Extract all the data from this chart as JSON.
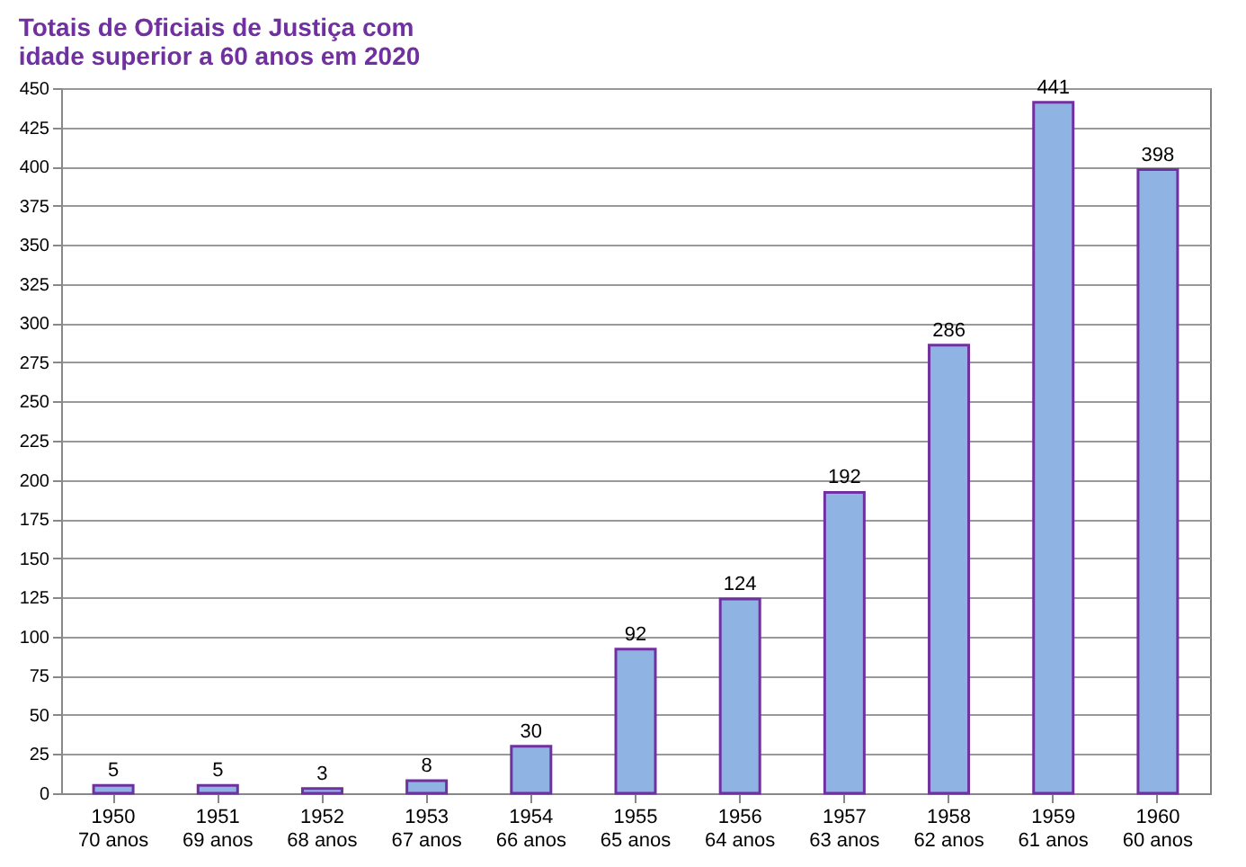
{
  "chart_data": {
    "type": "bar",
    "title": "Totais de Oficiais de Justiça com\nidade superior a 60 anos em 2020",
    "categories": [
      "1950\n70 anos",
      "1951\n69 anos",
      "1952\n68 anos",
      "1953\n67 anos",
      "1954\n66 anos",
      "1955\n65 anos",
      "1956\n64 anos",
      "1957\n63 anos",
      "1958\n62 anos",
      "1959\n61 anos",
      "1960\n60 anos"
    ],
    "values": [
      5,
      5,
      3,
      8,
      30,
      92,
      124,
      192,
      286,
      441,
      398
    ],
    "color": "#8fb3e3",
    "ylim": [
      0,
      450
    ],
    "yticks": [
      0,
      25,
      50,
      75,
      100,
      125,
      150,
      175,
      200,
      225,
      250,
      275,
      300,
      325,
      350,
      375,
      400,
      425,
      450
    ],
    "grid": "y",
    "data_labels": true
  }
}
